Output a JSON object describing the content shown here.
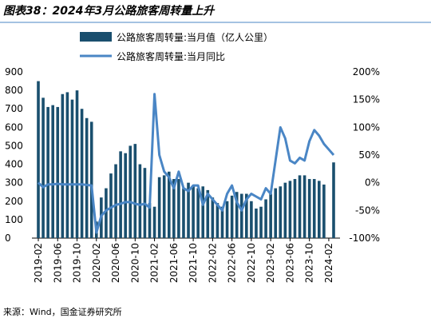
{
  "chart_data": {
    "type": "bar-line",
    "title": "图表38：2024年3月公路旅客周转量上升",
    "source": "来源：Wind，国金证券研究所",
    "categories": [
      "2019-02",
      null,
      null,
      null,
      "2019-06",
      null,
      null,
      null,
      "2019-10",
      null,
      null,
      null,
      "2020-02",
      null,
      null,
      null,
      "2020-06",
      null,
      null,
      null,
      "2020-10",
      null,
      null,
      null,
      "2021-02",
      null,
      null,
      null,
      "2021-06",
      null,
      null,
      null,
      "2021-10",
      null,
      null,
      null,
      "2022-02",
      null,
      null,
      null,
      "2022-06",
      null,
      null,
      null,
      "2022-10",
      null,
      null,
      null,
      "2023-02",
      null,
      null,
      null,
      "2023-06",
      null,
      null,
      null,
      "2023-10",
      null,
      null,
      null,
      "2024-02",
      null
    ],
    "series": [
      {
        "name": "公路旅客周转量:当月值（亿人公里）",
        "type": "bar",
        "color": "#1a4f6e",
        "values": [
          850,
          760,
          710,
          720,
          710,
          780,
          790,
          750,
          800,
          700,
          650,
          630,
          90,
          220,
          270,
          350,
          400,
          470,
          460,
          500,
          510,
          400,
          380,
          190,
          170,
          330,
          340,
          360,
          320,
          320,
          270,
          300,
          280,
          270,
          280,
          260,
          220,
          190,
          170,
          200,
          230,
          250,
          240,
          240,
          200,
          160,
          170,
          210,
          240,
          270,
          280,
          300,
          310,
          320,
          340,
          340,
          320,
          320,
          310,
          290,
          null,
          410
        ]
      },
      {
        "name": "公路旅客周转量:当月同比",
        "type": "line",
        "axis": "y2",
        "color": "#4a86c5",
        "values": [
          0,
          -8,
          -3,
          -3,
          -2,
          -3,
          -3,
          -3,
          -3,
          -3,
          -4,
          -5,
          -90,
          -60,
          -50,
          -45,
          -40,
          -38,
          -35,
          -35,
          -38,
          -40,
          -38,
          -45,
          160,
          50,
          20,
          10,
          -10,
          20,
          -10,
          -15,
          -5,
          -5,
          -40,
          -20,
          -30,
          -40,
          -50,
          -20,
          -5,
          -35,
          -50,
          -30,
          -20,
          -25,
          -30,
          -10,
          -20,
          40,
          100,
          80,
          40,
          35,
          45,
          40,
          75,
          95,
          85,
          70,
          60,
          50
        ]
      }
    ],
    "ylim": [
      0,
      900
    ],
    "yticks": [
      0,
      100,
      200,
      300,
      400,
      500,
      600,
      700,
      800,
      900
    ],
    "y2lim": [
      -100,
      200
    ],
    "y2ticks": [
      {
        "value": -100,
        "label": "-100%"
      },
      {
        "value": -50,
        "label": "-50%"
      },
      {
        "value": 0,
        "label": "0%"
      },
      {
        "value": 50,
        "label": "50%"
      },
      {
        "value": 100,
        "label": "100%"
      },
      {
        "value": 150,
        "label": "150%"
      },
      {
        "value": 200,
        "label": "200%"
      }
    ]
  }
}
